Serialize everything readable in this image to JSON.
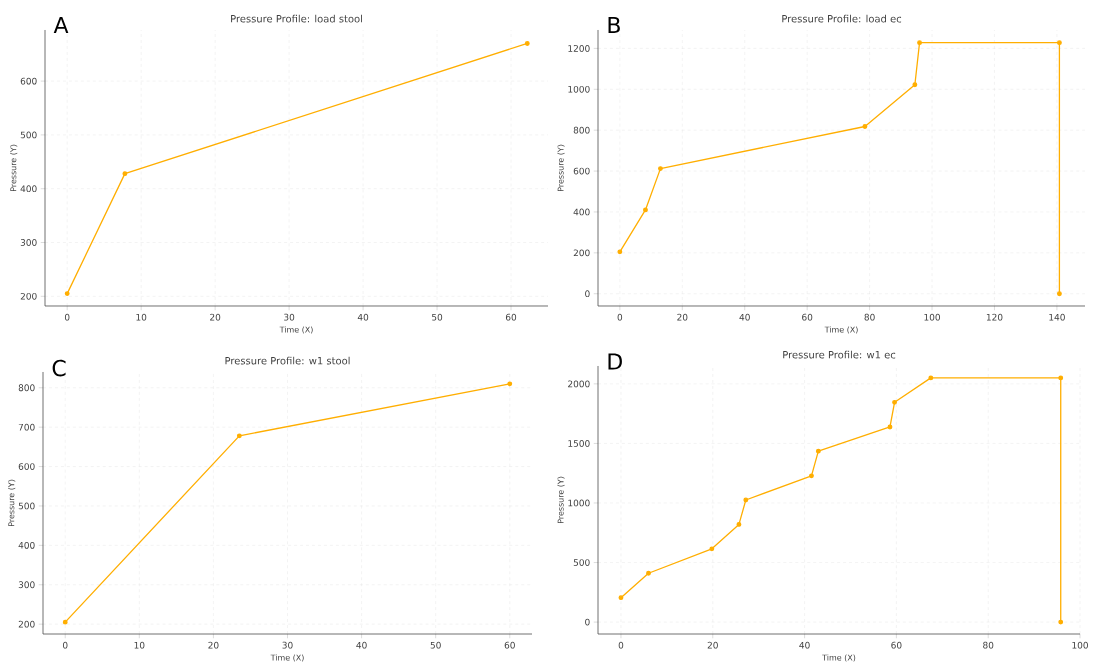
{
  "chart_data": [
    {
      "type": "line",
      "title": "Pressure Profile: load stool",
      "xlabel": "Time (X)",
      "ylabel": "Pressure (Y)",
      "annotations": [
        "A"
      ],
      "x": [
        0,
        7.8,
        62.2
      ],
      "values": [
        205,
        428,
        670
      ],
      "color": "#ffae00",
      "marker": "circle",
      "grid": true,
      "xlim": [
        -3,
        65
      ],
      "ylim": [
        182,
        695
      ],
      "xticks": [
        0,
        10,
        20,
        30,
        40,
        50,
        60
      ],
      "yticks": [
        200,
        300,
        400,
        500,
        600
      ]
    },
    {
      "type": "line",
      "title": "Pressure Profile: load ec",
      "xlabel": "Time (X)",
      "ylabel": "Pressure (Y)",
      "annotations": [
        "B"
      ],
      "x": [
        0,
        8.2,
        13,
        78.5,
        94.5,
        96,
        140.8,
        140.8
      ],
      "values": [
        205,
        410,
        612,
        818,
        1022,
        1228,
        1228,
        0
      ],
      "color": "#ffae00",
      "marker": "circle",
      "grid": true,
      "xlim": [
        -7,
        149
      ],
      "ylim": [
        -60,
        1290
      ],
      "xticks": [
        0,
        20,
        40,
        60,
        80,
        100,
        120,
        140
      ],
      "yticks": [
        0,
        200,
        400,
        600,
        800,
        1000,
        1200
      ]
    },
    {
      "type": "line",
      "title": "Pressure Profile: w1 stool",
      "xlabel": "Time (X)",
      "ylabel": "Pressure (Y)",
      "annotations": [
        "C"
      ],
      "x": [
        0,
        23.5,
        60
      ],
      "values": [
        205,
        678,
        810
      ],
      "color": "#ffae00",
      "marker": "circle",
      "grid": true,
      "xlim": [
        -3,
        63
      ],
      "ylim": [
        175,
        840
      ],
      "xticks": [
        0,
        10,
        20,
        30,
        40,
        50,
        60
      ],
      "yticks": [
        200,
        300,
        400,
        500,
        600,
        700,
        800
      ]
    },
    {
      "type": "line",
      "title": "Pressure Profile: w1 ec",
      "xlabel": "Time (X)",
      "ylabel": "Pressure (Y)",
      "annotations": [
        "D"
      ],
      "x": [
        0,
        6,
        19.8,
        25.7,
        27.2,
        41.5,
        43,
        58.6,
        59.6,
        67.5,
        95.8,
        95.8
      ],
      "values": [
        205,
        410,
        615,
        820,
        1025,
        1228,
        1435,
        1638,
        1845,
        2050,
        2050,
        0
      ],
      "color": "#ffae00",
      "marker": "circle",
      "grid": true,
      "xlim": [
        -5,
        100
      ],
      "ylim": [
        -100,
        2150
      ],
      "xticks": [
        0,
        20,
        40,
        60,
        80,
        100
      ],
      "yticks": [
        0,
        500,
        1000,
        1500,
        2000
      ]
    }
  ]
}
